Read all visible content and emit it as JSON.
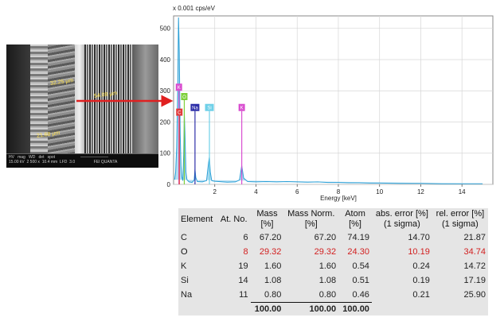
{
  "sem_image": {
    "labels": [
      "32.25 µm",
      "54.08 µm",
      "21.68 µm"
    ]
  },
  "chart_data": {
    "type": "line",
    "title": "",
    "y_unit_label": "x 0.001 cps/eV",
    "xlabel": "Energy [keV]",
    "xlim": [
      0,
      15.5
    ],
    "ylim": [
      0,
      540
    ],
    "x_ticks": [
      2,
      4,
      6,
      8,
      10,
      12,
      14
    ],
    "y_ticks": [
      0,
      100,
      200,
      300,
      400,
      500
    ],
    "grid": true,
    "series": [
      {
        "points": [
          [
            0.05,
            15
          ],
          [
            0.1,
            40
          ],
          [
            0.15,
            120
          ],
          [
            0.2,
            300
          ],
          [
            0.24,
            535
          ],
          [
            0.28,
            420
          ],
          [
            0.32,
            160
          ],
          [
            0.36,
            60
          ],
          [
            0.4,
            25
          ],
          [
            0.45,
            12
          ],
          [
            0.49,
            95
          ],
          [
            0.52,
            225
          ],
          [
            0.55,
            170
          ],
          [
            0.6,
            40
          ],
          [
            0.65,
            15
          ],
          [
            0.75,
            8
          ],
          [
            0.9,
            6
          ],
          [
            1.0,
            14
          ],
          [
            1.04,
            48
          ],
          [
            1.08,
            22
          ],
          [
            1.15,
            9
          ],
          [
            1.4,
            8
          ],
          [
            1.6,
            12
          ],
          [
            1.7,
            70
          ],
          [
            1.74,
            88
          ],
          [
            1.78,
            40
          ],
          [
            1.85,
            12
          ],
          [
            2.0,
            10
          ],
          [
            2.2,
            9
          ],
          [
            2.6,
            7
          ],
          [
            3.0,
            8
          ],
          [
            3.2,
            14
          ],
          [
            3.31,
            60
          ],
          [
            3.4,
            20
          ],
          [
            3.6,
            9
          ],
          [
            4.0,
            8
          ],
          [
            4.5,
            9
          ],
          [
            5.0,
            8
          ],
          [
            5.5,
            9
          ],
          [
            6.0,
            8
          ],
          [
            6.5,
            7
          ],
          [
            7.0,
            8
          ],
          [
            7.5,
            6
          ],
          [
            8.0,
            6
          ],
          [
            8.5,
            5
          ],
          [
            9.0,
            5
          ],
          [
            9.5,
            4
          ],
          [
            10.0,
            4
          ],
          [
            11.0,
            3
          ],
          [
            12.0,
            3
          ],
          [
            13.0,
            2
          ],
          [
            14.0,
            2
          ],
          [
            15.0,
            2
          ]
        ]
      }
    ],
    "peak_markers": [
      {
        "label": "K",
        "energy": 0.26,
        "y": 300,
        "color": "#d94fd0"
      },
      {
        "label": "C",
        "energy": 0.28,
        "y": 220,
        "color": "#e03a3a"
      },
      {
        "label": "O",
        "energy": 0.52,
        "y": 270,
        "color": "#7ccf3a"
      },
      {
        "label": "Na",
        "energy": 1.04,
        "y": 235,
        "color": "#2d2fa8"
      },
      {
        "label": "Si",
        "energy": 1.74,
        "y": 235,
        "color": "#6fd0e8"
      },
      {
        "label": "K",
        "energy": 3.31,
        "y": 235,
        "color": "#d94fd0"
      }
    ],
    "line_color": "#2a9fd6"
  },
  "table": {
    "headers": [
      "Element",
      "At. No.",
      "Mass [%]",
      "Mass Norm. [%]",
      "Atom [%]",
      "abs. error [%] (1 sigma)",
      "rel. error [%] (1 sigma)"
    ],
    "header_lines": [
      [
        "Element"
      ],
      [
        "At. No."
      ],
      [
        "Mass",
        "[%]"
      ],
      [
        "Mass Norm.",
        "[%]"
      ],
      [
        "Atom",
        "[%]"
      ],
      [
        "abs. error [%]",
        "(1 sigma)"
      ],
      [
        "rel. error [%]",
        "(1 sigma)"
      ]
    ],
    "rows": [
      {
        "element": "C",
        "at_no": "6",
        "mass": "67.20",
        "mass_norm": "67.20",
        "atom": "74.19",
        "abs_err": "14.70",
        "rel_err": "21.87",
        "highlight": false
      },
      {
        "element": "O",
        "at_no": "8",
        "mass": "29.32",
        "mass_norm": "29.32",
        "atom": "24.30",
        "abs_err": "10.19",
        "rel_err": "34.74",
        "highlight": true
      },
      {
        "element": "K",
        "at_no": "19",
        "mass": "1.60",
        "mass_norm": "1.60",
        "atom": "0.54",
        "abs_err": "0.24",
        "rel_err": "14.72",
        "highlight": false
      },
      {
        "element": "Si",
        "at_no": "14",
        "mass": "1.08",
        "mass_norm": "1.08",
        "atom": "0.51",
        "abs_err": "0.19",
        "rel_err": "17.19",
        "highlight": false
      },
      {
        "element": "Na",
        "at_no": "11",
        "mass": "0.80",
        "mass_norm": "0.80",
        "atom": "0.46",
        "abs_err": "0.21",
        "rel_err": "25.90",
        "highlight": false
      }
    ],
    "totals": {
      "mass": "100.00",
      "mass_norm": "100.00",
      "atom": "100.00"
    },
    "highlight_color": "#d22020"
  }
}
